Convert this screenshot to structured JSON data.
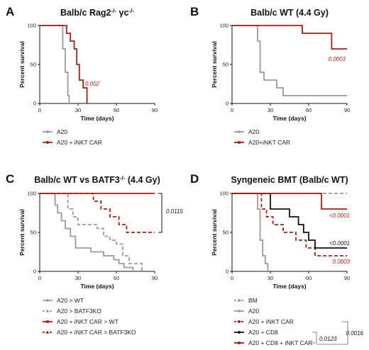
{
  "colors": {
    "gray": "#9a9a9a",
    "red": "#a71e12",
    "black": "#111111"
  },
  "chart_data": [
    {
      "type": "line",
      "panel": "A",
      "title": "Balb/c Rag2-/- γc-/-",
      "xlabel": "Time (days)",
      "ylabel": "Percent survival",
      "xlim": [
        0,
        90
      ],
      "ylim": [
        0,
        100
      ],
      "xticks": [
        0,
        30,
        60,
        90
      ],
      "yticks": [
        0,
        50,
        100
      ],
      "series": [
        {
          "name": "A20",
          "color": "#9a9a9a",
          "dash": false,
          "marker": "circle",
          "x": [
            0,
            16,
            18,
            20,
            22,
            23
          ],
          "y": [
            100,
            100,
            70,
            40,
            10,
            0
          ]
        },
        {
          "name": "A20 + iNKT CAR",
          "color": "#a71e12",
          "dash": false,
          "marker": "square",
          "x": [
            0,
            18,
            21,
            24,
            27,
            29,
            31,
            34,
            37
          ],
          "y": [
            100,
            100,
            90,
            80,
            70,
            50,
            30,
            20,
            0
          ]
        }
      ],
      "annotations": [
        {
          "text": "0.002",
          "color": "#a71e12"
        }
      ]
    },
    {
      "type": "line",
      "panel": "B",
      "title": "Balb/c WT (4.4 Gy)",
      "xlabel": "Time (days)",
      "ylabel": "Percent survival",
      "xlim": [
        0,
        90
      ],
      "ylim": [
        0,
        100
      ],
      "xticks": [
        0,
        30,
        60,
        90
      ],
      "yticks": [
        0,
        50,
        100
      ],
      "series": [
        {
          "name": "A20",
          "color": "#9a9a9a",
          "dash": false,
          "marker": "circle",
          "x": [
            0,
            17,
            20,
            22,
            25,
            35,
            40,
            90
          ],
          "y": [
            100,
            100,
            80,
            40,
            30,
            20,
            10,
            10
          ]
        },
        {
          "name": "A20+iNKT CAR",
          "color": "#a71e12",
          "dash": false,
          "marker": "square",
          "x": [
            0,
            38,
            55,
            78,
            90
          ],
          "y": [
            100,
            100,
            90,
            70,
            70
          ]
        }
      ],
      "annotations": [
        {
          "text": "0.0003",
          "color": "#a71e12"
        }
      ]
    },
    {
      "type": "line",
      "panel": "C",
      "title": "Balb/c WT vs BATF3-/- (4.4 Gy)",
      "xlabel": "Time (days)",
      "ylabel": "Percent survival",
      "xlim": [
        0,
        90
      ],
      "ylim": [
        0,
        100
      ],
      "xticks": [
        0,
        30,
        60,
        90
      ],
      "yticks": [
        0,
        50,
        100
      ],
      "series": [
        {
          "name": "A20 > WT",
          "color": "#9a9a9a",
          "dash": false,
          "marker": "circle",
          "x": [
            0,
            8,
            12,
            14,
            17,
            20,
            24,
            28,
            40,
            50,
            58,
            62,
            66,
            73
          ],
          "y": [
            100,
            100,
            85,
            75,
            65,
            55,
            45,
            30,
            25,
            20,
            15,
            10,
            5,
            0
          ]
        },
        {
          "name": "A20 > BATF3KO",
          "color": "#9a9a9a",
          "dash": true,
          "marker": "triangle",
          "x": [
            0,
            18,
            22,
            26,
            30,
            45,
            50,
            55,
            60,
            65,
            70,
            80
          ],
          "y": [
            100,
            100,
            80,
            70,
            60,
            55,
            45,
            40,
            35,
            20,
            10,
            0
          ]
        },
        {
          "name": "A20 + iNKT CAR > WT",
          "color": "#a71e12",
          "dash": false,
          "marker": "square",
          "x": [
            0,
            90
          ],
          "y": [
            100,
            100
          ]
        },
        {
          "name": "A20 + iNKT CAR > BATF3KO",
          "color": "#a71e12",
          "dash": true,
          "marker": "triangle",
          "x": [
            0,
            35,
            42,
            48,
            55,
            62,
            68,
            76,
            90
          ],
          "y": [
            100,
            100,
            90,
            80,
            70,
            60,
            50,
            50,
            50
          ]
        }
      ],
      "annotations": [
        {
          "text": "0.0115",
          "color": "#111111"
        }
      ]
    },
    {
      "type": "line",
      "panel": "D",
      "title": "Syngeneic BMT (Balb/c WT)",
      "xlabel": "Time (days)",
      "ylabel": "Percent survival",
      "xlim": [
        0,
        90
      ],
      "ylim": [
        0,
        100
      ],
      "xticks": [
        0,
        30,
        60,
        90
      ],
      "yticks": [
        0,
        50,
        100
      ],
      "series": [
        {
          "name": "BM",
          "color": "#9a9a9a",
          "dash": true,
          "marker": "circle",
          "x": [
            0,
            90
          ],
          "y": [
            100,
            100
          ]
        },
        {
          "name": "A20",
          "color": "#9a9a9a",
          "dash": false,
          "marker": "circle",
          "x": [
            0,
            18,
            20,
            22,
            24,
            26,
            28
          ],
          "y": [
            100,
            100,
            80,
            40,
            20,
            10,
            0
          ]
        },
        {
          "name": "A20 + iNKT CAR",
          "color": "#a71e12",
          "dash": true,
          "marker": "square",
          "x": [
            0,
            20,
            23,
            27,
            32,
            40,
            50,
            58,
            65,
            90
          ],
          "y": [
            100,
            100,
            80,
            70,
            60,
            50,
            40,
            30,
            20,
            20
          ]
        },
        {
          "name": "A20 + CD8",
          "color": "#111111",
          "dash": false,
          "marker": "circle",
          "x": [
            0,
            25,
            30,
            45,
            52,
            56,
            60,
            65,
            90
          ],
          "y": [
            100,
            100,
            80,
            70,
            60,
            50,
            40,
            30,
            30
          ]
        },
        {
          "name": "A20 + CD8 + iNKT CAR",
          "color": "#a71e12",
          "dash": false,
          "marker": "square",
          "x": [
            0,
            55,
            70,
            90
          ],
          "y": [
            100,
            100,
            80,
            80
          ]
        }
      ],
      "annotations": [
        {
          "text": "<0.0001",
          "color": "#a71e12"
        },
        {
          "text": "<0.0001",
          "color": "#111111"
        },
        {
          "text": "0.0003",
          "color": "#a71e12"
        },
        {
          "text": "0.0123",
          "color": "#111111"
        },
        {
          "text": "0.0016",
          "color": "#111111"
        }
      ]
    }
  ]
}
